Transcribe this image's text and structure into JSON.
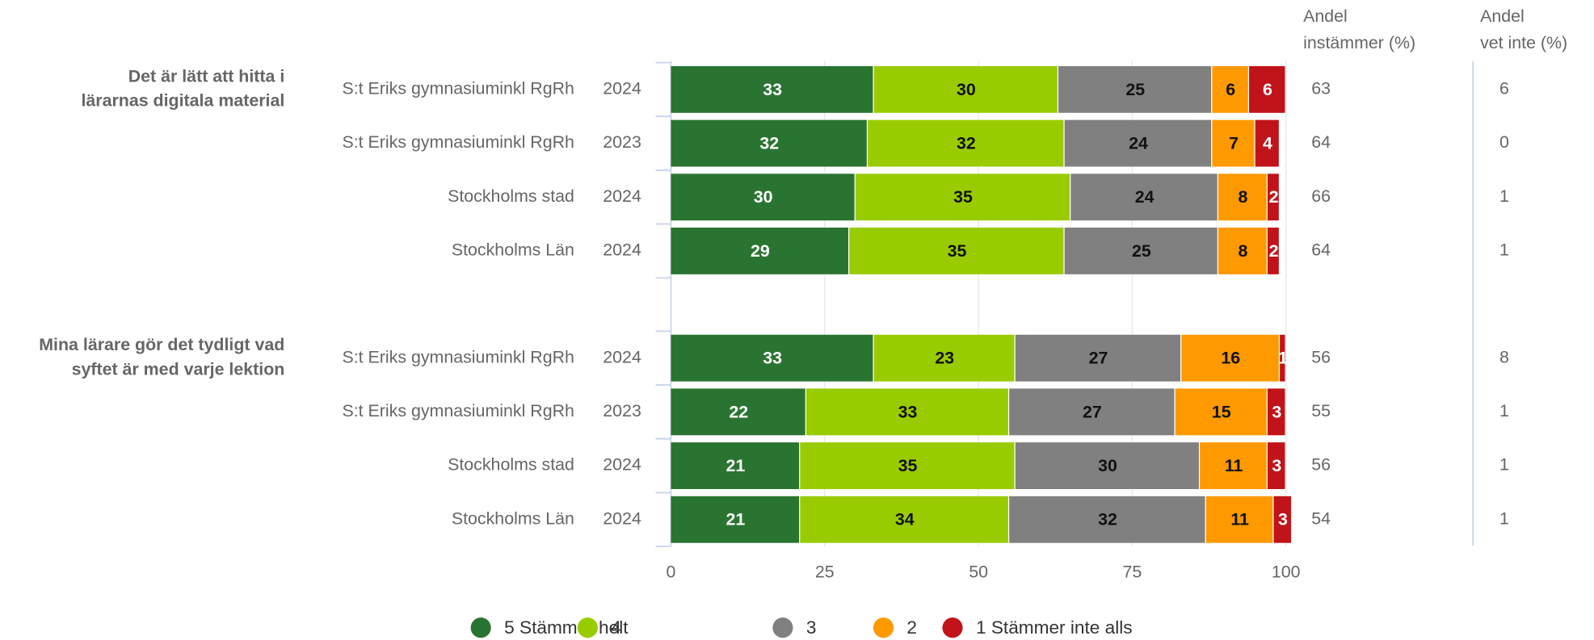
{
  "chart_data": {
    "type": "bar",
    "orientation": "horizontal",
    "stacked": true,
    "groups": [
      {
        "label": [
          "Det är lätt att hitta i",
          "lärarnas digitala material"
        ],
        "categories": [
          "S:t Eriks gymnasiuminkl RgRh",
          "S:t Eriks gymnasiuminkl RgRh",
          "Stockholms stad",
          "Stockholms Län"
        ],
        "years": [
          "2024",
          "2023",
          "2024",
          "2024"
        ]
      },
      {
        "label": [
          "Mina lärare gör det tydligt vad",
          "syftet är med varje lektion"
        ],
        "categories": [
          "S:t Eriks gymnasiuminkl RgRh",
          "S:t Eriks gymnasiuminkl RgRh",
          "Stockholms stad",
          "Stockholms Län"
        ],
        "years": [
          "2024",
          "2023",
          "2024",
          "2024"
        ]
      }
    ],
    "series": [
      {
        "name": "5 Stämmer helt",
        "color": "#2a7431",
        "label_color": "#ffffff",
        "values": [
          33,
          32,
          30,
          29,
          33,
          22,
          21,
          21
        ]
      },
      {
        "name": "4",
        "color": "#99cc00",
        "label_color": "#111111",
        "values": [
          30,
          32,
          35,
          35,
          23,
          33,
          35,
          34
        ]
      },
      {
        "name": "3",
        "color": "#808080",
        "label_color": "#111111",
        "values": [
          25,
          24,
          24,
          25,
          27,
          27,
          30,
          32
        ]
      },
      {
        "name": "2",
        "color": "#ff9900",
        "label_color": "#111111",
        "values": [
          6,
          7,
          8,
          8,
          16,
          15,
          11,
          11
        ]
      },
      {
        "name": "1 Stämmer inte alls",
        "color": "#c0141a",
        "label_color": "#ffffff",
        "values": [
          6,
          4,
          2,
          2,
          1,
          3,
          3,
          3
        ]
      }
    ],
    "columns": [
      {
        "label": [
          "Andel",
          "instämmer (%)"
        ],
        "values": [
          63,
          64,
          66,
          64,
          56,
          55,
          56,
          54
        ]
      },
      {
        "label": [
          "Andel",
          "vet inte (%)"
        ],
        "values": [
          6,
          0,
          1,
          1,
          8,
          1,
          1,
          1
        ]
      }
    ],
    "xlim": [
      0,
      100
    ],
    "xticks": [
      0,
      25,
      50,
      75,
      100
    ],
    "grid": true,
    "legend": "bottom"
  }
}
